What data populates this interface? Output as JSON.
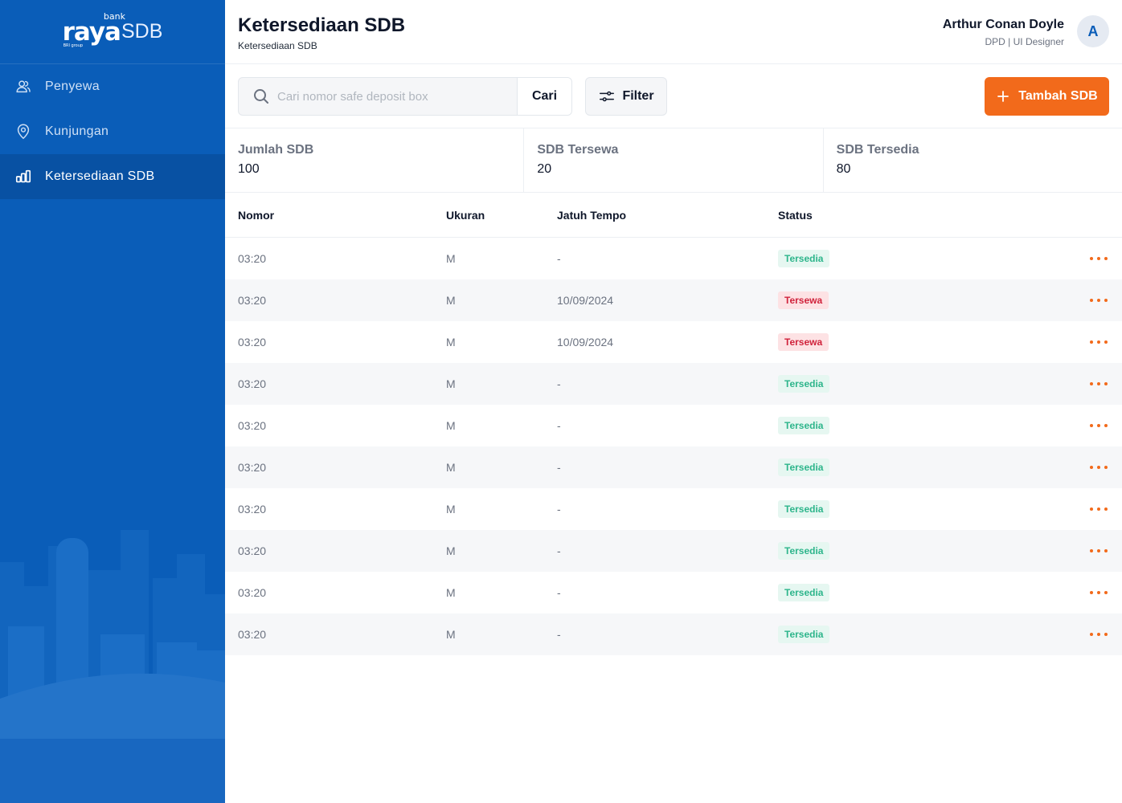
{
  "brand": {
    "logo_main": "raya",
    "logo_bank": "bank",
    "logo_group": "BRI group",
    "logo_sdb": "SDB"
  },
  "sidebar": {
    "items": [
      {
        "label": "Penyewa",
        "icon": "users-icon",
        "active": false
      },
      {
        "label": "Kunjungan",
        "icon": "location-pin-icon",
        "active": false
      },
      {
        "label": "Ketersediaan SDB",
        "icon": "bar-chart-icon",
        "active": true
      }
    ]
  },
  "header": {
    "title": "Ketersediaan SDB",
    "breadcrumb": "Ketersediaan SDB",
    "user_name": "Arthur Conan Doyle",
    "user_role": "DPD | UI Designer",
    "avatar_initial": "A"
  },
  "toolbar": {
    "search_placeholder": "Cari nomor safe deposit box",
    "search_value": "",
    "search_button": "Cari",
    "filter_button": "Filter",
    "add_button": "Tambah SDB"
  },
  "stats": [
    {
      "label": "Jumlah SDB",
      "value": "100"
    },
    {
      "label": "SDB Tersewa",
      "value": "20"
    },
    {
      "label": "SDB Tersedia",
      "value": "80"
    }
  ],
  "table": {
    "columns": [
      "Nomor",
      "Ukuran",
      "Jatuh Tempo",
      "Status"
    ],
    "rows": [
      {
        "nomor": "03:20",
        "ukuran": "M",
        "jatuh_tempo": "-",
        "status": "Tersedia"
      },
      {
        "nomor": "03:20",
        "ukuran": "M",
        "jatuh_tempo": "10/09/2024",
        "status": "Tersewa"
      },
      {
        "nomor": "03:20",
        "ukuran": "M",
        "jatuh_tempo": "10/09/2024",
        "status": "Tersewa"
      },
      {
        "nomor": "03:20",
        "ukuran": "M",
        "jatuh_tempo": "-",
        "status": "Tersedia"
      },
      {
        "nomor": "03:20",
        "ukuran": "M",
        "jatuh_tempo": "-",
        "status": "Tersedia"
      },
      {
        "nomor": "03:20",
        "ukuran": "M",
        "jatuh_tempo": "-",
        "status": "Tersedia"
      },
      {
        "nomor": "03:20",
        "ukuran": "M",
        "jatuh_tempo": "-",
        "status": "Tersedia"
      },
      {
        "nomor": "03:20",
        "ukuran": "M",
        "jatuh_tempo": "-",
        "status": "Tersedia"
      },
      {
        "nomor": "03:20",
        "ukuran": "M",
        "jatuh_tempo": "-",
        "status": "Tersedia"
      },
      {
        "nomor": "03:20",
        "ukuran": "M",
        "jatuh_tempo": "-",
        "status": "Tersedia"
      }
    ]
  },
  "colors": {
    "sidebar": "#0a5db8",
    "accent": "#f26a1b",
    "available": "#2db58b",
    "rented": "#d0223b"
  }
}
